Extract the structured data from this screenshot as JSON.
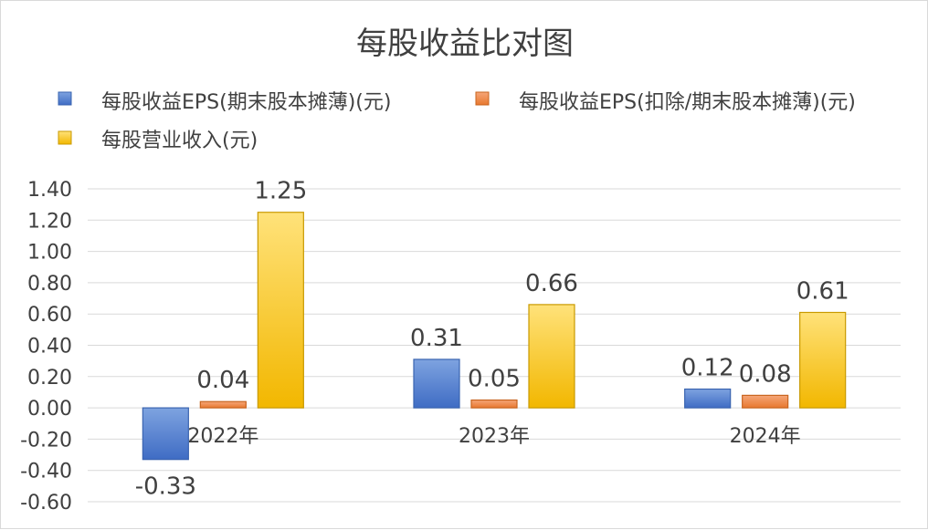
{
  "chart_data": {
    "type": "bar",
    "title": "每股收益比对图",
    "categories": [
      "2022年",
      "2023年",
      "2024年"
    ],
    "series": [
      {
        "name": "每股收益EPS(期末股本摊薄)(元)",
        "values": [
          -0.33,
          0.31,
          0.12
        ],
        "labels": [
          "-0.33",
          "0.31",
          "0.12"
        ],
        "color": "#4472C4"
      },
      {
        "name": "每股收益EPS(扣除/期末股本摊薄)(元)",
        "values": [
          0.04,
          0.05,
          0.08
        ],
        "labels": [
          "0.04",
          "0.05",
          "0.08"
        ],
        "color": "#ED7D31"
      },
      {
        "name": "每股营业收入(元)",
        "values": [
          1.25,
          0.66,
          0.61
        ],
        "labels": [
          "1.25",
          "0.66",
          "0.61"
        ],
        "color": "#FFC000"
      }
    ],
    "yticks": [
      "-0.60",
      "-0.40",
      "-0.20",
      "0.00",
      "0.20",
      "0.40",
      "0.60",
      "0.80",
      "1.00",
      "1.20",
      "1.40"
    ],
    "ylim": [
      -0.6,
      1.4
    ],
    "xlabel": "",
    "ylabel": "",
    "grid": true,
    "legend_position": "top"
  }
}
